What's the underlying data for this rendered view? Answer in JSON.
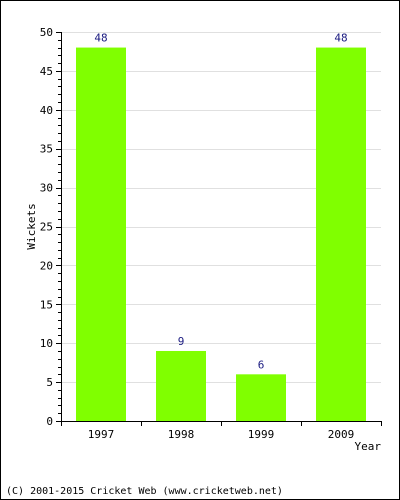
{
  "chart_data": {
    "type": "bar",
    "categories": [
      "1997",
      "1998",
      "1999",
      "2009"
    ],
    "values": [
      48,
      9,
      6,
      48
    ],
    "data_labels": [
      "48",
      "9",
      "6",
      "48"
    ],
    "title": "",
    "xlabel": "Year",
    "ylabel": "Wickets",
    "ylim": [
      0,
      50
    ],
    "yticks": [
      0,
      5,
      10,
      15,
      20,
      25,
      30,
      35,
      40,
      45,
      50
    ],
    "grid": true,
    "bar_color": "#80ff00",
    "label_color": "#1a1a80",
    "grid_color": "#e0e0e0"
  },
  "footer": {
    "copyright": "(C) 2001-2015 Cricket Web (www.cricketweb.net)"
  }
}
